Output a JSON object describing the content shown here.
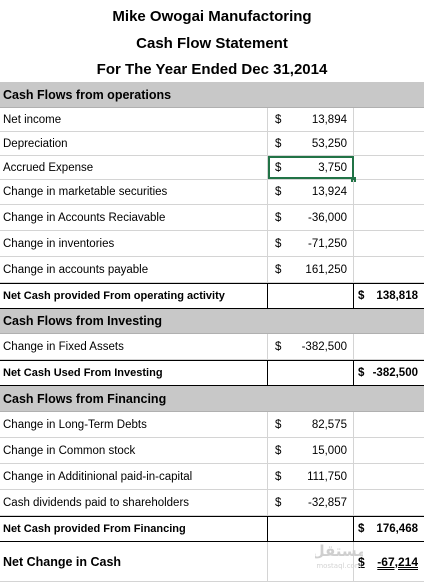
{
  "title": {
    "company": "Mike Owogai Manufactoring",
    "statement": "Cash Flow Statement",
    "period": "For The Year Ended Dec 31,2014"
  },
  "currency_symbol": "$",
  "operations": {
    "header": "Cash Flows from operations",
    "items": [
      {
        "label": "Net income",
        "amount": "13,894"
      },
      {
        "label": "Depreciation",
        "amount": "53,250"
      },
      {
        "label": "Accrued Expense",
        "amount": "3,750"
      },
      {
        "label": "Change in marketable securities",
        "amount": "13,924"
      },
      {
        "label": "Change in Accounts Reciavable",
        "amount": "-36,000"
      },
      {
        "label": "Change in inventories",
        "amount": "-71,250"
      },
      {
        "label": "Change in accounts payable",
        "amount": "161,250"
      }
    ],
    "total_label": "Net Cash provided From operating activity",
    "total": "138,818"
  },
  "investing": {
    "header": "Cash Flows from Investing",
    "items": [
      {
        "label": "Change in Fixed Assets",
        "amount": "-382,500"
      }
    ],
    "total_label": "Net Cash Used From Investing",
    "total": "-382,500"
  },
  "financing": {
    "header": "Cash Flows from Financing",
    "items": [
      {
        "label": "Change in Long-Term Debts",
        "amount": "82,575"
      },
      {
        "label": "Change in Common stock",
        "amount": "15,000"
      },
      {
        "label": "Change in Additinional paid-in-capital",
        "amount": "111,750"
      },
      {
        "label": "Cash dividends paid to shareholders",
        "amount": "-32,857"
      }
    ],
    "total_label": "Net Cash provided From Financing",
    "total": "176,468"
  },
  "net_change": {
    "label": "Net Change in Cash",
    "amount": "-67,214"
  },
  "watermark": {
    "text": "مستقل",
    "subtext": "mostaql.com"
  },
  "colors": {
    "section_fill": "#c8c8c8",
    "selection_border": "#217346"
  }
}
